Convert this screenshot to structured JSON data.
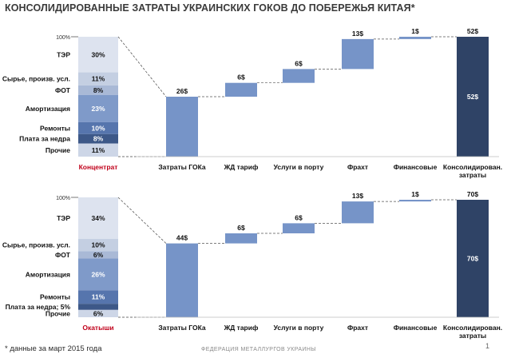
{
  "title": "КОНСОЛИДИРОВАННЫЕ ЗАТРАТЫ УКРАИНСКИХ ГОКОВ ДО ПОБЕРЕЖЬЯ КИТАЯ*",
  "footnote": "* данные  за март 2015 года",
  "footer_org": "ФЕДЕРАЦИЯ  МЕТАЛЛУРГОВ УКРАИНЫ",
  "page_number": "1",
  "colors": {
    "bar": "#7694c8",
    "total": "#2f4366",
    "stack": [
      "#dde3ef",
      "#c4cfe2",
      "#a9b9d6",
      "#7f9ac9",
      "#5675ad",
      "#3d5888",
      "#cdd6e7"
    ],
    "label_red": "#c0001a"
  },
  "chart_data": [
    {
      "type": "bar",
      "subtype": "waterfall-with-stacked-composition",
      "composition_label": "Концентрат",
      "top_label": "100%",
      "composition": [
        {
          "name": "ТЭР",
          "percent": 30,
          "label": "30%"
        },
        {
          "name": "Сырье, произв. усл.",
          "percent": 11,
          "label": "11%"
        },
        {
          "name": "ФОТ",
          "percent": 8,
          "label": "8%"
        },
        {
          "name": "Амортизация",
          "percent": 23,
          "label": "23%"
        },
        {
          "name": "Ремонты",
          "percent": 10,
          "label": "10%"
        },
        {
          "name": "Плата за недра",
          "percent": 8,
          "label": "8%"
        },
        {
          "name": "Прочие",
          "percent": 11,
          "label": "11%"
        }
      ],
      "categories": [
        "Затраты ГОКа",
        "ЖД тариф",
        "Услуги в порту",
        "Фрахт",
        "Финансовые",
        "Консолидирован. затраты"
      ],
      "values": [
        26,
        6,
        6,
        13,
        1,
        52
      ],
      "value_labels": [
        "26$",
        "6$",
        "6$",
        "13$",
        "1$",
        "52$"
      ],
      "total_inner_label": "52$",
      "ylim": [
        0,
        52
      ]
    },
    {
      "type": "bar",
      "subtype": "waterfall-with-stacked-composition",
      "composition_label": "Окатыши",
      "top_label": "100%",
      "composition": [
        {
          "name": "ТЭР",
          "percent": 34,
          "label": "34%"
        },
        {
          "name": "Сырье, произв. усл.",
          "percent": 10,
          "label": "10%"
        },
        {
          "name": "ФОТ",
          "percent": 6,
          "label": "6%"
        },
        {
          "name": "Амортизация",
          "percent": 26,
          "label": "26%"
        },
        {
          "name": "Ремонты",
          "percent": 11,
          "label": "11%"
        },
        {
          "name": "Плата за недра; 5%",
          "percent": 5,
          "label": ""
        },
        {
          "name": "Прочие",
          "percent": 6,
          "label": "6%"
        }
      ],
      "categories": [
        "Затраты ГОКа",
        "ЖД тариф",
        "Услуги в порту",
        "Фрахт",
        "Финансовые",
        "Консолидирован. затраты"
      ],
      "values": [
        44,
        6,
        6,
        13,
        1,
        70
      ],
      "value_labels": [
        "44$",
        "6$",
        "6$",
        "13$",
        "1$",
        "70$"
      ],
      "total_inner_label": "70$",
      "ylim": [
        0,
        70
      ]
    }
  ]
}
